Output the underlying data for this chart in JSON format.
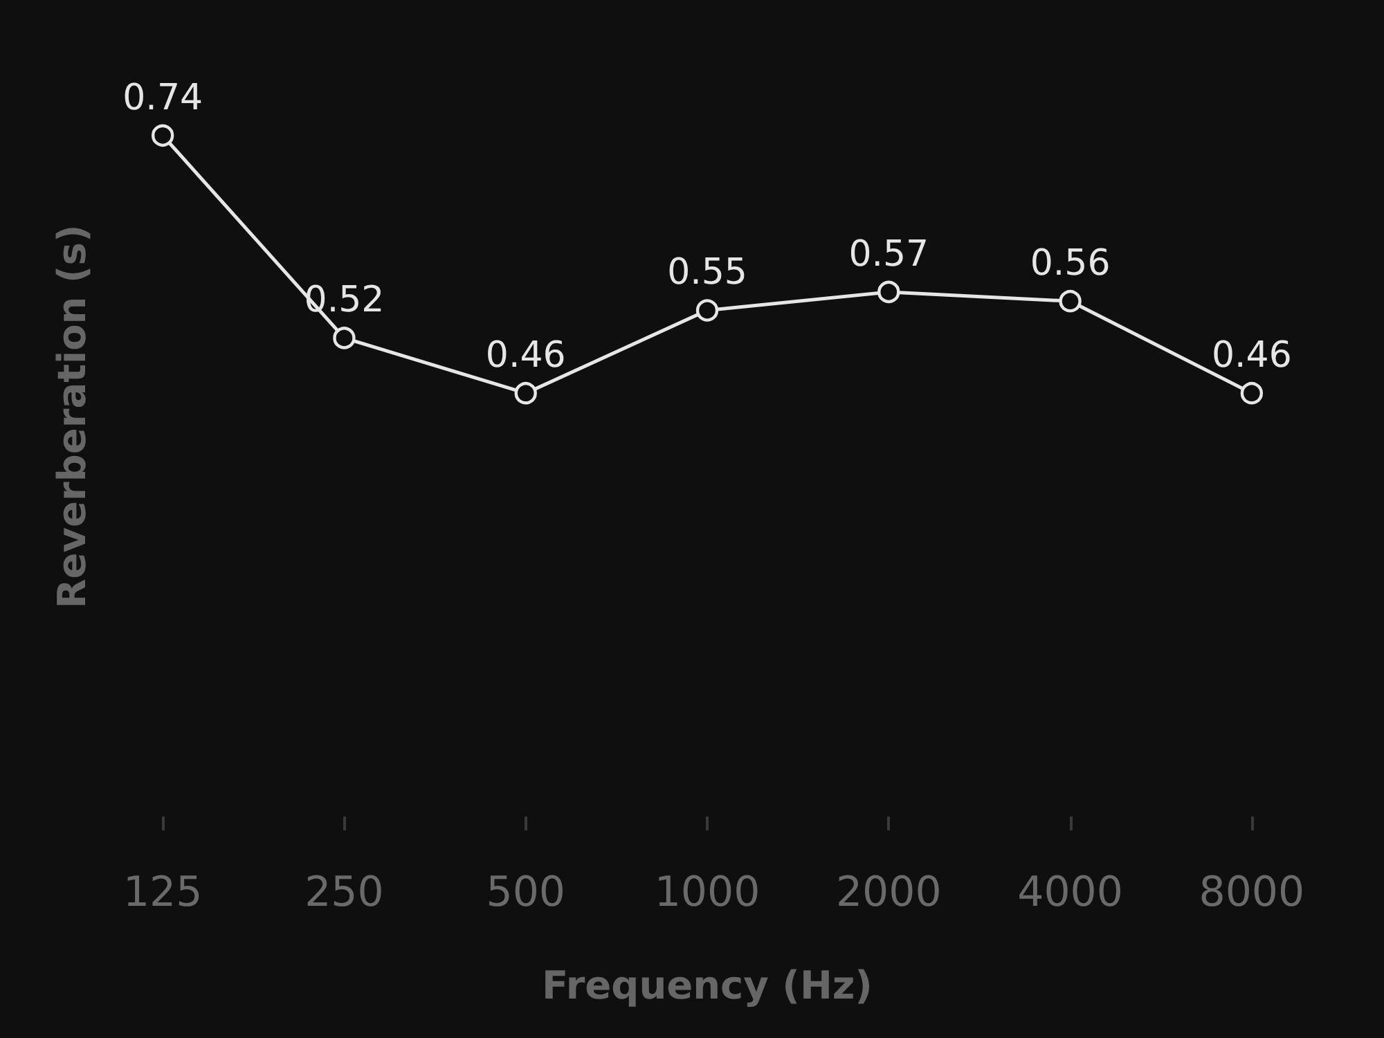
{
  "chart_data": {
    "type": "line",
    "xlabel": "Frequency (Hz)",
    "ylabel": "Reverberation (s)",
    "categories": [
      "125",
      "250",
      "500",
      "1000",
      "2000",
      "4000",
      "8000"
    ],
    "values": [
      0.74,
      0.52,
      0.46,
      0.55,
      0.57,
      0.56,
      0.46
    ],
    "color": "#e6e6e6",
    "data_labels": true,
    "marker": "circle",
    "line_style": "solid",
    "tick_labels": "x"
  }
}
